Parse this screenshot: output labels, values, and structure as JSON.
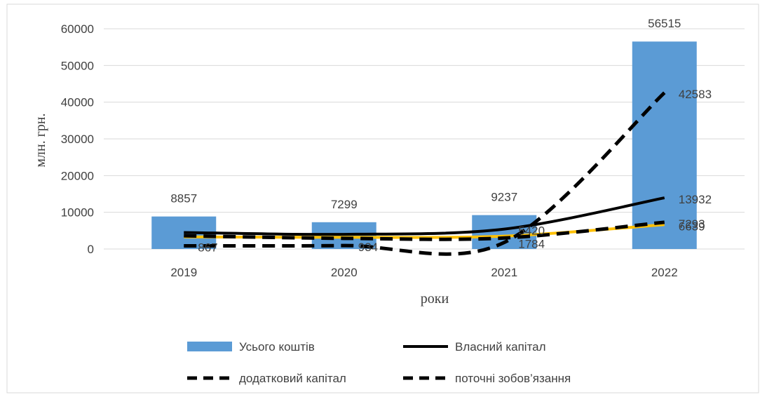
{
  "chart_data": {
    "type": "bar",
    "categories": [
      "2019",
      "2020",
      "2021",
      "2022"
    ],
    "xlabel": "роки",
    "ylabel": "млн. грн.",
    "ylim": [
      0,
      60000
    ],
    "yticks": [
      "0",
      "10000",
      "20000",
      "30000",
      "40000",
      "50000",
      "60000"
    ],
    "grid": true,
    "legend_position": "bottom",
    "bars": {
      "name": "Усього коштів",
      "color": "#5b9bd5",
      "values": [
        8857,
        7299,
        9237,
        56515
      ],
      "labels": [
        "8857",
        "7299",
        "9237",
        "56515"
      ]
    },
    "series": [
      {
        "name": "Власний капітал",
        "style": "solid",
        "color": "#000000",
        "values": [
          4500,
          4000,
          5420,
          13932
        ],
        "labels": [
          "",
          "",
          "5420",
          "13932"
        ]
      },
      {
        "name": "додатковий капітал",
        "style": "dashed",
        "color": "#000000",
        "values": [
          3600,
          2900,
          3000,
          7293
        ],
        "labels": [
          "",
          "",
          "",
          "7293"
        ]
      },
      {
        "name": "поточні зобов’язання",
        "style": "dashed",
        "color": "#000000",
        "values": [
          867,
          934,
          1784,
          42583
        ],
        "labels": [
          "867",
          "934",
          "1784",
          "42583"
        ]
      },
      {
        "name": "",
        "style": "solid",
        "color": "#ffc000",
        "values": [
          3300,
          3200,
          3500,
          6639
        ],
        "labels": [
          "",
          "",
          "",
          "6639"
        ]
      }
    ]
  }
}
